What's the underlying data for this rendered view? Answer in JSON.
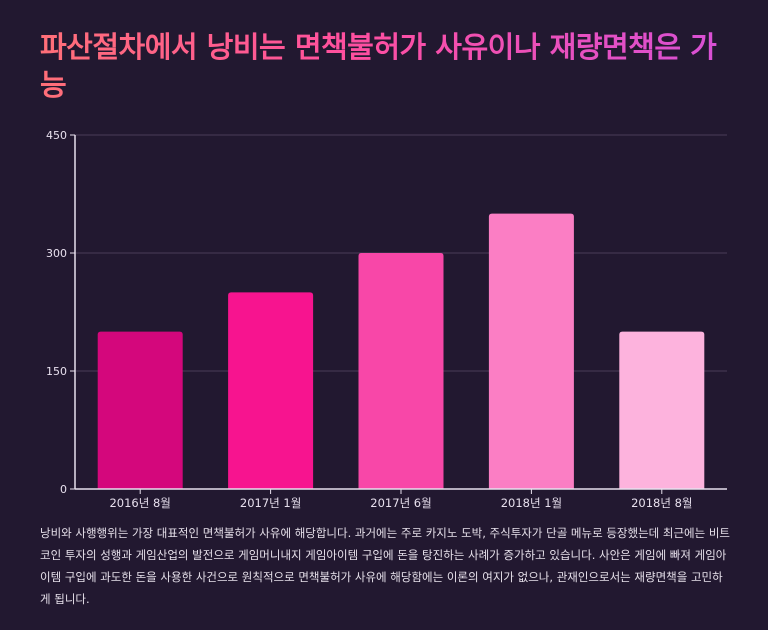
{
  "title": "파산절차에서 낭비는 면책불허가 사유이나 재량면책은 가능",
  "description": "낭비와 사행행위는 가장 대표적인 면책불허가 사유에 해당합니다. 과거에는 주로 카지노 도박, 주식투자가 단골 메뉴로 등장했는데 최근에는 비트코인 투자의 성행과 게임산업의 발전으로 게임머니내지 게임아이템 구입에 돈을 탕진하는 사례가 증가하고 있습니다. 사안은 게임에 빠져 게임아이템 구입에 과도한 돈을 사용한 사건으로 원칙적으로 면책불허가 사유에 해당함에는 이론의 여지가 없으나, 관재인으로서는 재량면책을 고민하게 됩니다.",
  "chart_data": {
    "type": "bar",
    "categories": [
      "2016년 8월",
      "2017년 1월",
      "2017년 6월",
      "2018년 1월",
      "2018년 8월"
    ],
    "values": [
      200,
      250,
      300,
      350,
      200
    ],
    "colors": [
      "#d4077c",
      "#f7148f",
      "#f847a8",
      "#fb7ec4",
      "#fdb3dd"
    ],
    "yticks": [
      0,
      150,
      300,
      450
    ],
    "ylim": [
      0,
      450
    ],
    "grid": true,
    "xlabel": "",
    "ylabel": ""
  }
}
